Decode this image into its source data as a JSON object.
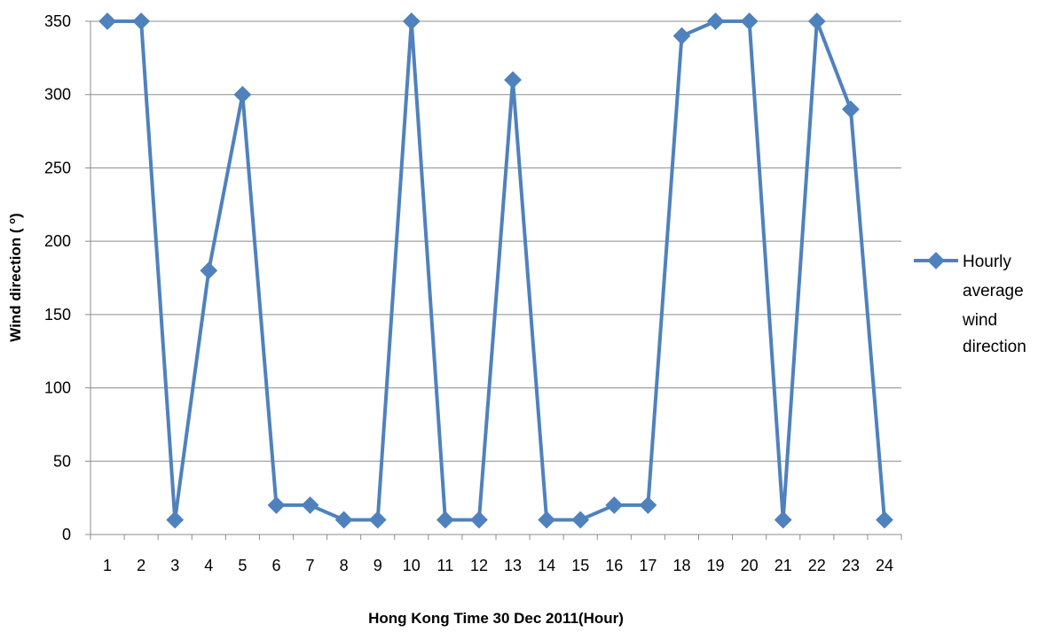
{
  "chart_data": {
    "type": "line",
    "x": [
      "1",
      "2",
      "3",
      "4",
      "5",
      "6",
      "7",
      "8",
      "9",
      "10",
      "11",
      "12",
      "13",
      "14",
      "15",
      "16",
      "17",
      "18",
      "19",
      "20",
      "21",
      "22",
      "23",
      "24"
    ],
    "series": [
      {
        "name": "Hourly average wind direction",
        "values": [
          350,
          350,
          10,
          180,
          300,
          20,
          20,
          10,
          10,
          350,
          10,
          10,
          310,
          10,
          10,
          20,
          20,
          340,
          350,
          350,
          10,
          350,
          290,
          10
        ],
        "color": "#4f81bd"
      }
    ],
    "yticks": [
      0,
      50,
      100,
      150,
      200,
      250,
      300,
      350
    ],
    "ylim": [
      0,
      350
    ],
    "xlabel": "Hong Kong Time 30 Dec 2011(Hour)",
    "ylabel": "Wind direction (o)",
    "grid": "horizontal",
    "legend_position": "right",
    "legend_lines": [
      "Hourly",
      "average",
      "wind",
      "direction"
    ]
  }
}
